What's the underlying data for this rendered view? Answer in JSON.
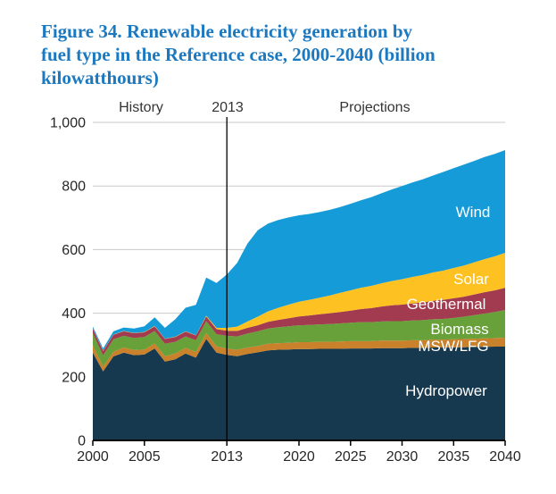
{
  "figure": {
    "title_lines": [
      "Figure 34. Renewable electricity generation by",
      "fuel type in the Reference case, 2000-2040 (billion",
      "kilowatthours)"
    ],
    "title_color": "#1C79C0"
  },
  "annotations": {
    "history_label": "History",
    "divider_label": "2013",
    "projections_label": "Projections"
  },
  "y_axis": {
    "tick_values": [
      0,
      200,
      400,
      600,
      800,
      1000
    ],
    "tick_labels": [
      "0",
      "200",
      "400",
      "600",
      "800",
      "1,000"
    ]
  },
  "x_axis": {
    "tick_years": [
      2000,
      2005,
      2013,
      2020,
      2025,
      2030,
      2035,
      2040
    ],
    "tick_labels": [
      "2000",
      "2005",
      "2013",
      "2020",
      "2025",
      "2030",
      "2035",
      "2040"
    ]
  },
  "styles": {
    "gridline_color": "#C9C9C9",
    "axis_color": "#000000",
    "divider_color": "#000000",
    "tick_label_color": "#262626",
    "zone_label_color": "#333333",
    "band_label_color": "#FFFFFF",
    "background_color": "#FFFFFF"
  },
  "chart_data": {
    "type": "area",
    "stacked": true,
    "title": "Figure 34. Renewable electricity generation by fuel type in the Reference case, 2000-2040 (billion kilowatthours)",
    "units": "billion kilowatthours",
    "xlim": [
      2000,
      2040
    ],
    "ylim": [
      0,
      1000
    ],
    "grid": true,
    "divider_year": 2013,
    "history_range": [
      2000,
      2013
    ],
    "projection_range": [
      2013,
      2040
    ],
    "years": [
      2000,
      2001,
      2002,
      2003,
      2004,
      2005,
      2006,
      2007,
      2008,
      2009,
      2010,
      2011,
      2012,
      2013,
      2014,
      2015,
      2016,
      2017,
      2018,
      2019,
      2020,
      2021,
      2022,
      2023,
      2024,
      2025,
      2026,
      2027,
      2028,
      2029,
      2030,
      2031,
      2032,
      2033,
      2034,
      2035,
      2036,
      2037,
      2038,
      2039,
      2040
    ],
    "series": [
      {
        "name": "Hydropower",
        "color": "#16394F",
        "values": [
          276,
          217,
          264,
          276,
          268,
          270,
          289,
          248,
          255,
          273,
          260,
          319,
          276,
          269,
          265,
          272,
          277,
          283,
          285,
          286,
          287,
          287,
          288,
          288,
          288,
          289,
          289,
          289,
          290,
          290,
          290,
          291,
          291,
          292,
          292,
          293,
          293,
          294,
          294,
          295,
          295
        ]
      },
      {
        "name": "MSW/LFG",
        "color": "#C9822B",
        "values": [
          23,
          15,
          15,
          16,
          16,
          16,
          16,
          17,
          18,
          18,
          18,
          19,
          20,
          20,
          20,
          20,
          20,
          21,
          21,
          21,
          22,
          22,
          22,
          22,
          23,
          23,
          23,
          23,
          24,
          24,
          24,
          24,
          24,
          25,
          25,
          25,
          26,
          26,
          27,
          27,
          28
        ]
      },
      {
        "name": "Biomass",
        "color": "#68A03A",
        "values": [
          38,
          35,
          39,
          37,
          38,
          39,
          39,
          39,
          37,
          36,
          37,
          37,
          38,
          40,
          42,
          44,
          46,
          48,
          50,
          52,
          53,
          54,
          55,
          56,
          57,
          58,
          60,
          60,
          60,
          61,
          61,
          62,
          63,
          64,
          65,
          67,
          70,
          74,
          78,
          82,
          87
        ]
      },
      {
        "name": "Geothermal",
        "color": "#A23B4F",
        "values": [
          14,
          14,
          14,
          14,
          15,
          15,
          15,
          15,
          15,
          15,
          15,
          15,
          16,
          16,
          17,
          18,
          19,
          21,
          23,
          25,
          28,
          30,
          32,
          34,
          36,
          38,
          41,
          44,
          47,
          50,
          52,
          54,
          56,
          58,
          60,
          62,
          63,
          65,
          67,
          68,
          70
        ]
      },
      {
        "name": "Solar",
        "color": "#FDC221",
        "values": [
          1,
          1,
          1,
          1,
          1,
          1,
          1,
          1,
          1,
          1,
          1,
          2,
          4,
          9,
          14,
          20,
          27,
          33,
          38,
          43,
          46,
          49,
          52,
          56,
          60,
          64,
          67,
          70,
          73,
          76,
          80,
          83,
          86,
          89,
          92,
          95,
          98,
          101,
          104,
          107,
          110
        ]
      },
      {
        "name": "Wind",
        "color": "#159BD8",
        "values": [
          6,
          7,
          10,
          11,
          14,
          18,
          27,
          34,
          55,
          74,
          95,
          120,
          141,
          168,
          200,
          245,
          272,
          276,
          276,
          274,
          272,
          270,
          269,
          269,
          270,
          272,
          275,
          279,
          283,
          288,
          293,
          297,
          301,
          305,
          310,
          314,
          317,
          319,
          321,
          322,
          323
        ]
      }
    ]
  }
}
